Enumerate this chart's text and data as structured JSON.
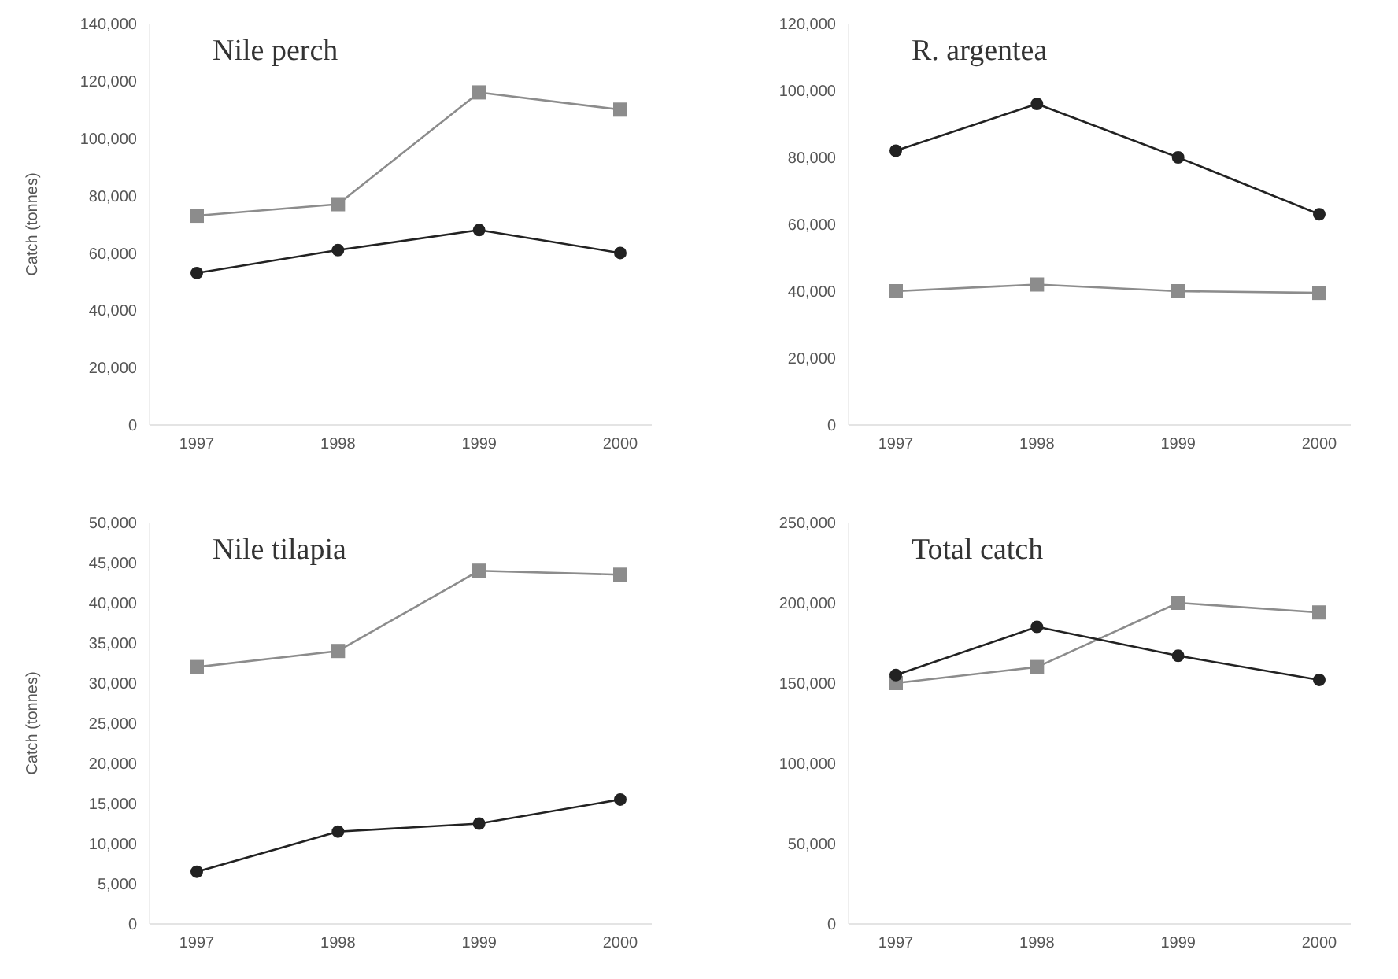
{
  "chart_data": [
    {
      "type": "line",
      "title": "Nile perch",
      "ylabel": "Catch (tonnes)",
      "categories": [
        "1997",
        "1998",
        "1999",
        "2000"
      ],
      "ylim": [
        0,
        140000
      ],
      "yticks": [
        {
          "value": 0,
          "label": "0"
        },
        {
          "value": 20000,
          "label": "20,000"
        },
        {
          "value": 40000,
          "label": "40,000"
        },
        {
          "value": 60000,
          "label": "60,000"
        },
        {
          "value": 80000,
          "label": "80,000"
        },
        {
          "value": 100000,
          "label": "100,000"
        },
        {
          "value": 120000,
          "label": "120,000"
        },
        {
          "value": 140000,
          "label": "140,000"
        }
      ],
      "series": [
        {
          "color": "#8c8c8c",
          "marker": "square",
          "values": [
            73000,
            77000,
            116000,
            110000
          ]
        },
        {
          "color": "#222222",
          "marker": "circle",
          "values": [
            53000,
            61000,
            68000,
            60000
          ]
        }
      ]
    },
    {
      "type": "line",
      "title": "R. argentea",
      "categories": [
        "1997",
        "1998",
        "1999",
        "2000"
      ],
      "ylim": [
        0,
        120000
      ],
      "yticks": [
        {
          "value": 0,
          "label": "0"
        },
        {
          "value": 20000,
          "label": "20,000"
        },
        {
          "value": 40000,
          "label": "40,000"
        },
        {
          "value": 60000,
          "label": "60,000"
        },
        {
          "value": 80000,
          "label": "80,000"
        },
        {
          "value": 100000,
          "label": "100,000"
        },
        {
          "value": 120000,
          "label": "120,000"
        }
      ],
      "series": [
        {
          "color": "#8c8c8c",
          "marker": "square",
          "values": [
            40000,
            42000,
            40000,
            39500
          ]
        },
        {
          "color": "#222222",
          "marker": "circle",
          "values": [
            82000,
            96000,
            80000,
            63000
          ]
        }
      ]
    },
    {
      "type": "line",
      "title": "Nile tilapia",
      "ylabel": "Catch (tonnes)",
      "categories": [
        "1997",
        "1998",
        "1999",
        "2000"
      ],
      "ylim": [
        0,
        50000
      ],
      "yticks": [
        {
          "value": 0,
          "label": "0"
        },
        {
          "value": 5000,
          "label": "5,000"
        },
        {
          "value": 10000,
          "label": "10,000"
        },
        {
          "value": 15000,
          "label": "15,000"
        },
        {
          "value": 20000,
          "label": "20,000"
        },
        {
          "value": 25000,
          "label": "25,000"
        },
        {
          "value": 30000,
          "label": "30,000"
        },
        {
          "value": 35000,
          "label": "35,000"
        },
        {
          "value": 40000,
          "label": "40,000"
        },
        {
          "value": 45000,
          "label": "45,000"
        },
        {
          "value": 50000,
          "label": "50,000"
        }
      ],
      "series": [
        {
          "color": "#8c8c8c",
          "marker": "square",
          "values": [
            32000,
            34000,
            44000,
            43500
          ]
        },
        {
          "color": "#222222",
          "marker": "circle",
          "values": [
            6500,
            11500,
            12500,
            15500
          ]
        }
      ]
    },
    {
      "type": "line",
      "title": "Total catch",
      "categories": [
        "1997",
        "1998",
        "1999",
        "2000"
      ],
      "ylim": [
        0,
        250000
      ],
      "yticks": [
        {
          "value": 0,
          "label": "0"
        },
        {
          "value": 50000,
          "label": "50,000"
        },
        {
          "value": 100000,
          "label": "100,000"
        },
        {
          "value": 150000,
          "label": "150,000"
        },
        {
          "value": 200000,
          "label": "200,000"
        },
        {
          "value": 250000,
          "label": "250,000"
        }
      ],
      "series": [
        {
          "color": "#8c8c8c",
          "marker": "square",
          "values": [
            150000,
            160000,
            200000,
            194000
          ]
        },
        {
          "color": "#222222",
          "marker": "circle",
          "values": [
            155000,
            185000,
            167000,
            152000
          ]
        }
      ]
    }
  ]
}
